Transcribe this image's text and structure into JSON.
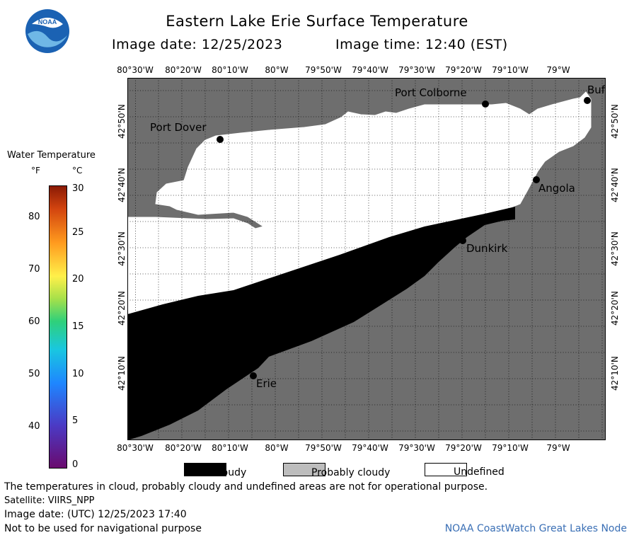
{
  "header": {
    "title": "Eastern Lake Erie Surface Temperature",
    "image_date_label": "Image date: 12/25/2023",
    "image_time_label": "Image time: 12:40 (EST)",
    "logo_text": "NOAA"
  },
  "map": {
    "lon_labels": [
      "80°30'W",
      "80°20'W",
      "80°10'W",
      "80°W",
      "79°50'W",
      "79°40'W",
      "79°30'W",
      "79°20'W",
      "79°10'W",
      "79°W"
    ],
    "lat_labels": [
      "42°10'N",
      "42°20'N",
      "42°30'N",
      "42°40'N",
      "42°50'N"
    ],
    "places": [
      {
        "name": "Port Dover"
      },
      {
        "name": "Port Colborne"
      },
      {
        "name": "Buf"
      },
      {
        "name": "Angola"
      },
      {
        "name": "Dunkirk"
      },
      {
        "name": "Erie"
      }
    ],
    "colors": {
      "land": "#6e6e6e",
      "cloud": "#000000",
      "undefined": "#ffffff",
      "grid": "#000000"
    }
  },
  "colorbar": {
    "title": "Water Temperature",
    "unit_f": "°F",
    "unit_c": "°C",
    "f_ticks": [
      "80",
      "70",
      "60",
      "50",
      "40"
    ],
    "c_ticks": [
      "30",
      "25",
      "20",
      "15",
      "10",
      "5",
      "0"
    ]
  },
  "categories": [
    {
      "label": "Cloudy",
      "color": "#000000"
    },
    {
      "label": "Probably cloudy",
      "color": "#bdbdbd"
    },
    {
      "label": "Undefined",
      "color": "#ffffff"
    }
  ],
  "footer": {
    "disclaimer": "The temperatures in cloud, probably cloudy and undefined areas are not for operational purpose.",
    "satellite": "Satellite: VIIRS_NPP",
    "utc_date": "Image date: (UTC) 12/25/2023  17:40",
    "nav_warning": "Not to be used for navigational purpose",
    "credit": "NOAA CoastWatch Great Lakes Node"
  }
}
